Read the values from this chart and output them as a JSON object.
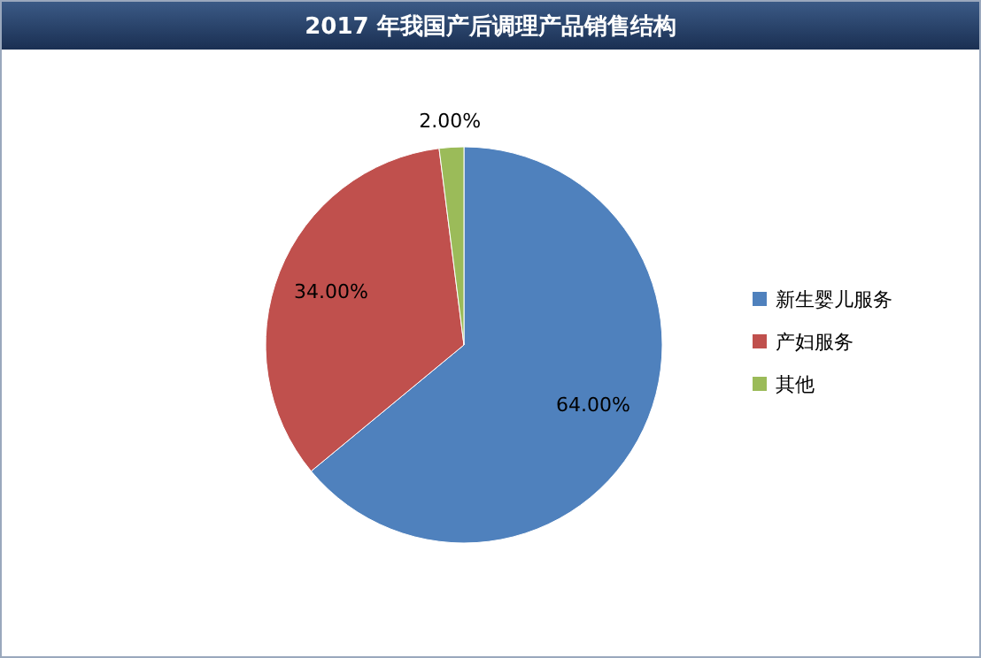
{
  "chart_data": {
    "type": "pie",
    "title": "2017 年我国产后调理产品销售结构",
    "categories": [
      "新生婴儿服务",
      "产妇服务",
      "其他"
    ],
    "values": [
      64,
      34,
      2
    ],
    "colors": [
      "#4f81bd",
      "#c0504d",
      "#9bbb59"
    ],
    "value_labels": [
      "64.00%",
      "34.00%",
      "2.00%"
    ],
    "legend": "right"
  }
}
